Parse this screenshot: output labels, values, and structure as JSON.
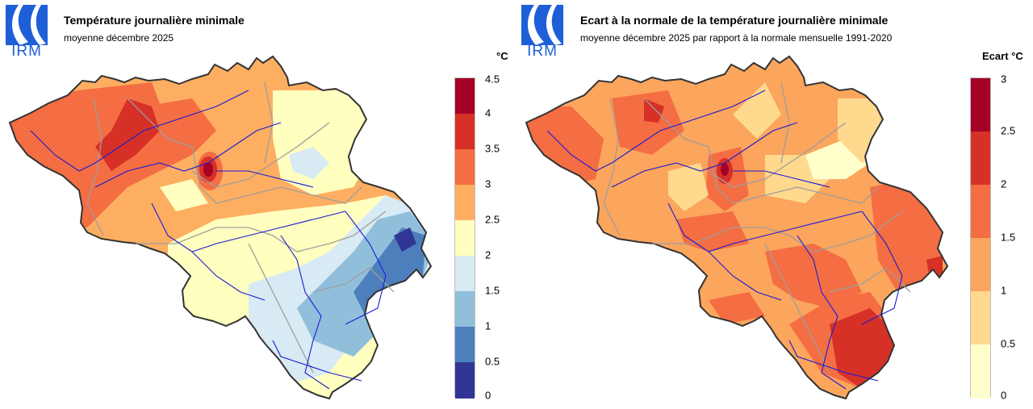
{
  "logo": {
    "text": "IRM",
    "color": "#1e5fd8"
  },
  "left_panel": {
    "title": "Température journalière minimale",
    "subtitle": "moyenne décembre 2025",
    "unit": "°C",
    "legend": {
      "ticks": [
        "4.5",
        "4",
        "3.5",
        "3",
        "2.5",
        "2",
        "1.5",
        "1",
        "0.5",
        "0"
      ],
      "colors": [
        "#a50026",
        "#d73027",
        "#f46d43",
        "#fdae61",
        "#fee090",
        "#ffffbf",
        "#e0f3f8",
        "#abd9e9",
        "#74add1",
        "#4575b4",
        "#313695"
      ],
      "bins": [
        {
          "range": "4–4.5",
          "color": "#a50026"
        },
        {
          "range": "3.5–4",
          "color": "#d73027"
        },
        {
          "range": "3–3.5",
          "color": "#f46d43"
        },
        {
          "range": "2.5–3",
          "color": "#fdae61"
        },
        {
          "range": "2–2.5",
          "color": "#ffffbf"
        },
        {
          "range": "1.5–2",
          "color": "#d8eaf3"
        },
        {
          "range": "1–1.5",
          "color": "#91bfdb"
        },
        {
          "range": "0.5–1",
          "color": "#4d7fbd"
        },
        {
          "range": "0–0.5",
          "color": "#313695"
        }
      ]
    }
  },
  "right_panel": {
    "title": "Ecart à la normale de la température journalière minimale",
    "subtitle": "moyenne décembre 2025 par rapport à la normale mensuelle 1991-2020",
    "unit": "Ecart °C",
    "legend": {
      "ticks": [
        "3",
        "2.5",
        "2",
        "1.5",
        "1",
        "0.5",
        "0"
      ],
      "bins": [
        {
          "range": "2.5–3",
          "color": "#a50026"
        },
        {
          "range": "2–2.5",
          "color": "#d73027"
        },
        {
          "range": "1.5–2",
          "color": "#f46d43"
        },
        {
          "range": "1–1.5",
          "color": "#fca55d"
        },
        {
          "range": "0.5–1",
          "color": "#fed98e"
        },
        {
          "range": "0–0.5",
          "color": "#ffffcc"
        }
      ]
    }
  }
}
